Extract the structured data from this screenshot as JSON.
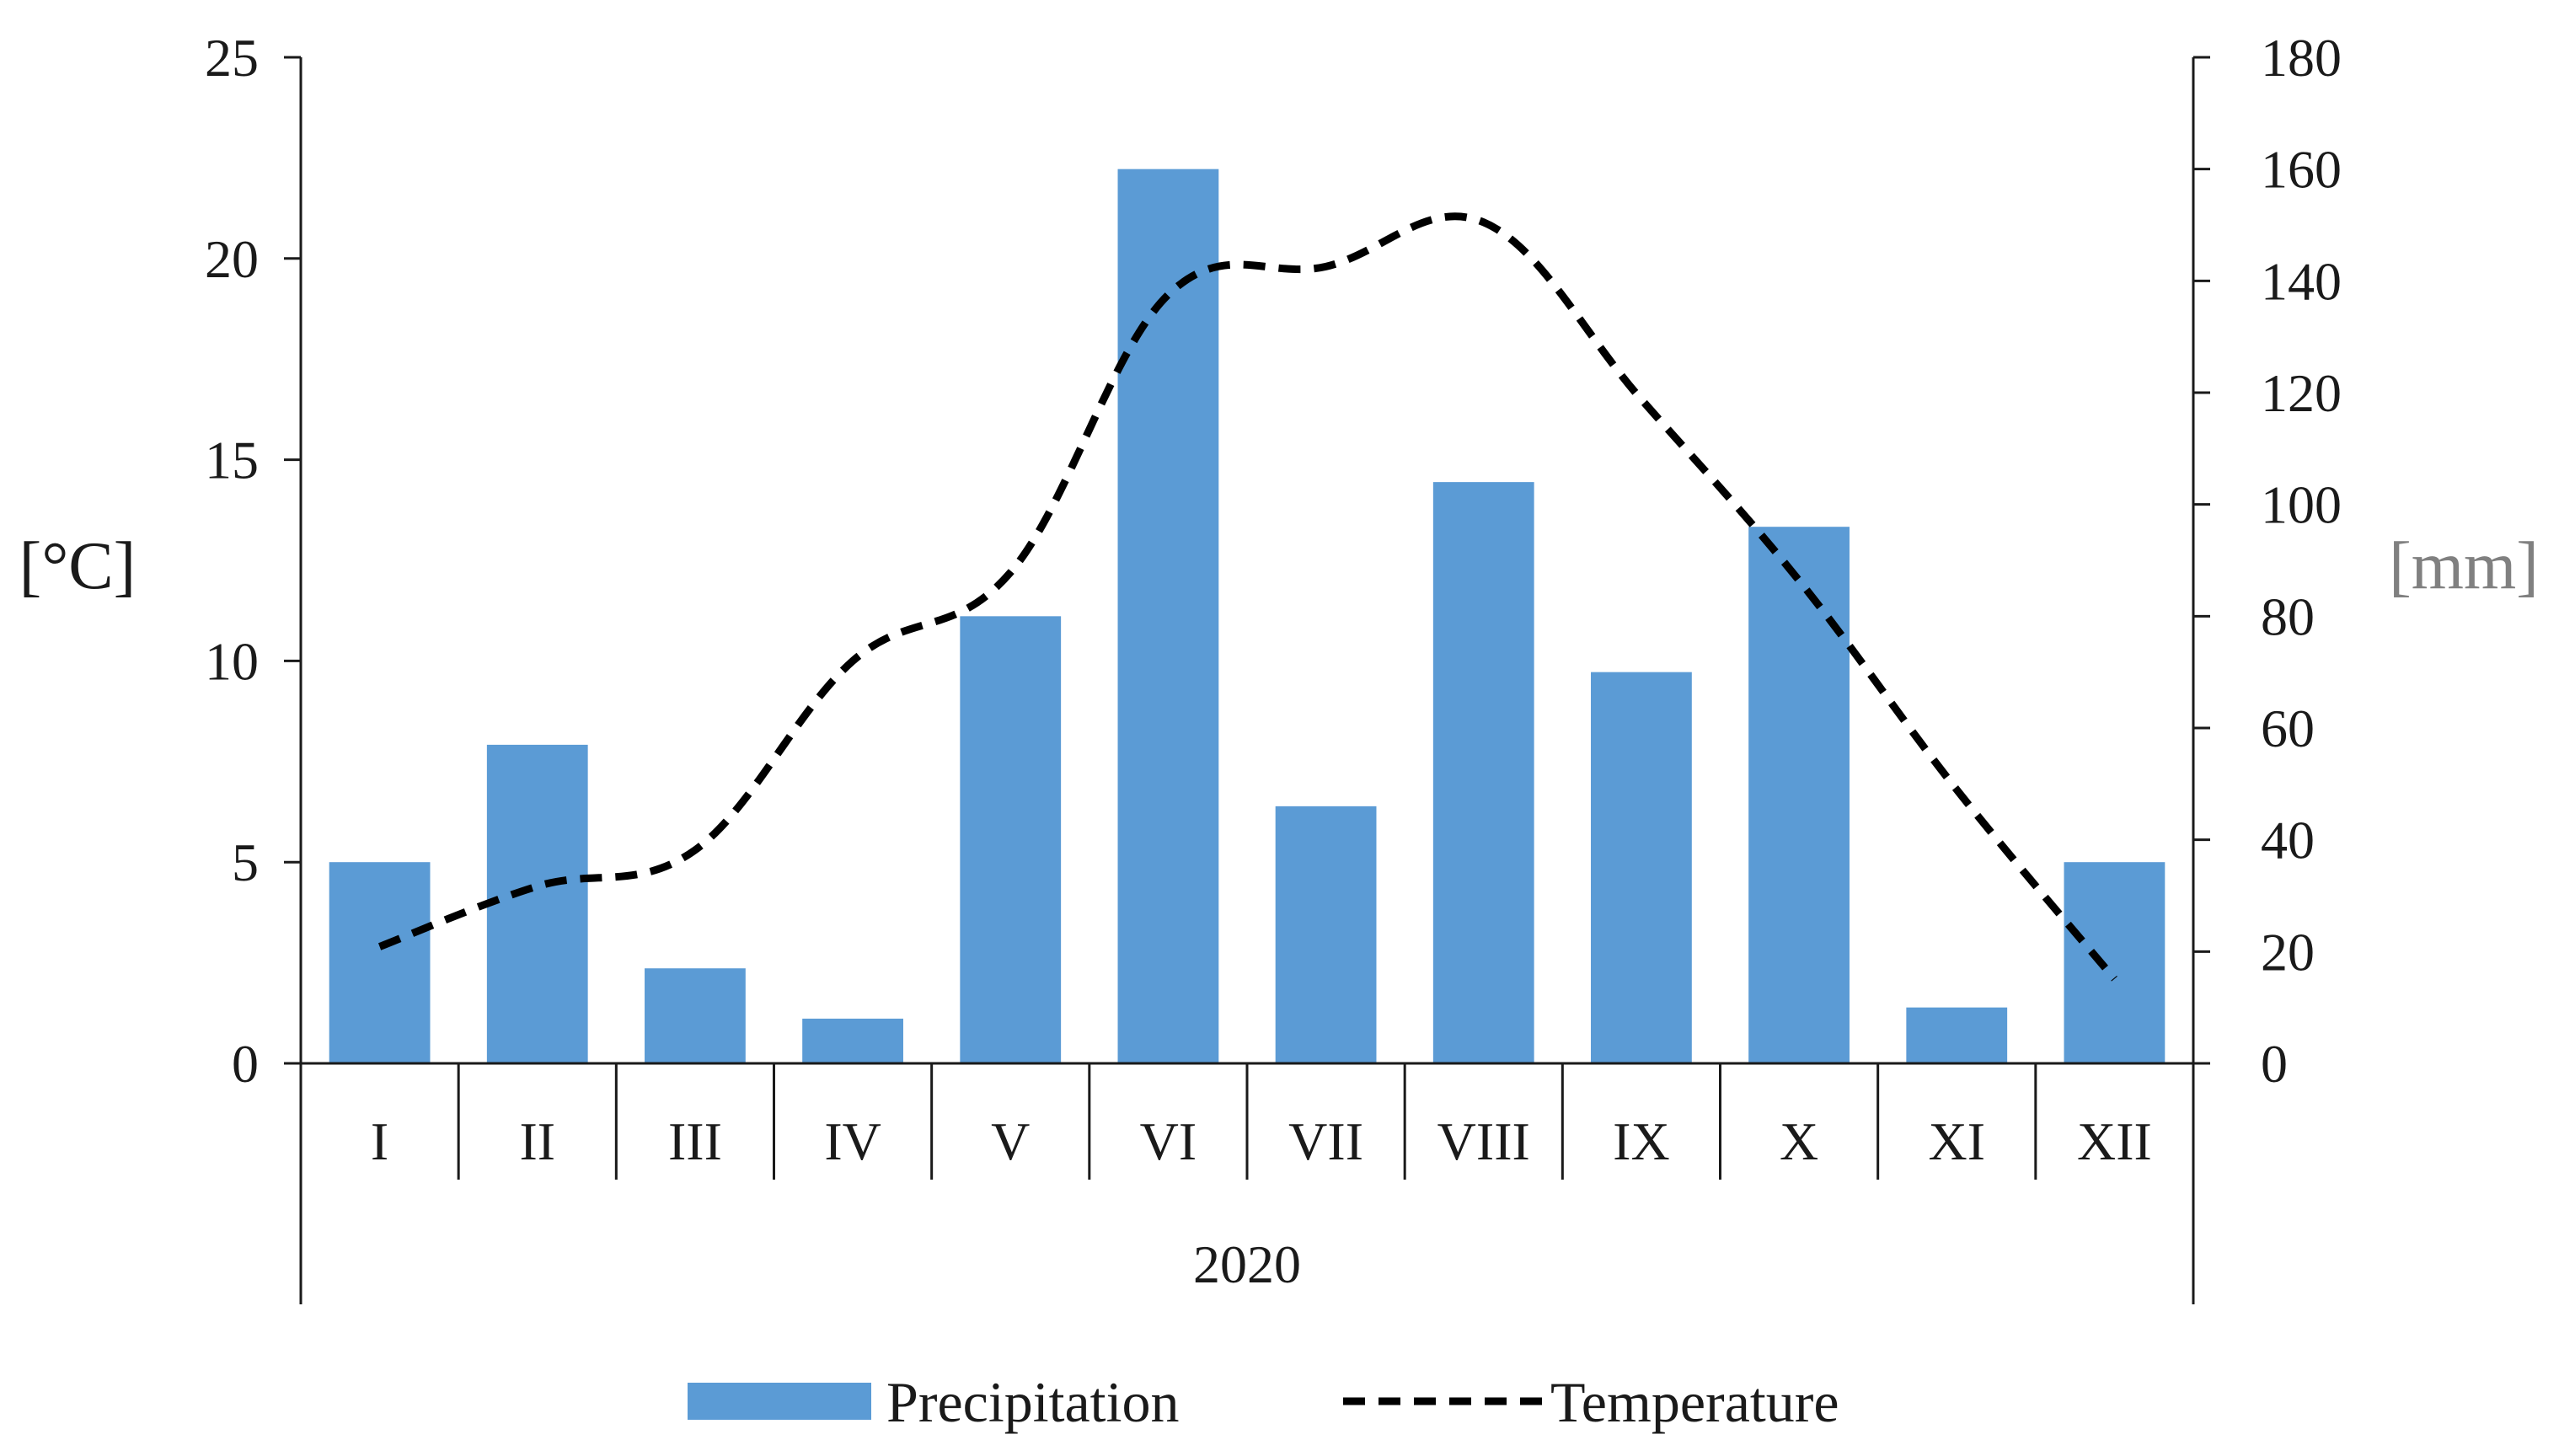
{
  "chart_data": {
    "type": "bar",
    "categories": [
      "I",
      "II",
      "III",
      "IV",
      "V",
      "VI",
      "VII",
      "VIII",
      "IX",
      "X",
      "XI",
      "XII"
    ],
    "group_label": "2020",
    "series": [
      {
        "name": "Precipitation",
        "type": "bar",
        "axis": "right",
        "color": "#5b9bd5",
        "values": [
          36,
          57,
          17,
          8,
          80,
          160,
          46,
          104,
          70,
          96,
          10,
          36
        ]
      },
      {
        "name": "Temperature",
        "type": "line",
        "axis": "left",
        "color": "#000000",
        "line_style": "dashed",
        "values": [
          2.9,
          4.4,
          5.3,
          10.0,
          12.2,
          19.1,
          19.8,
          20.9,
          16.5,
          12.0,
          6.8,
          2.1
        ]
      }
    ],
    "y_left": {
      "label": "[°C]",
      "ylim": [
        0,
        25
      ],
      "ticks": [
        0,
        5,
        10,
        15,
        20,
        25
      ]
    },
    "y_right": {
      "label": "[mm]",
      "ylim": [
        0,
        180
      ],
      "ticks": [
        0,
        20,
        40,
        60,
        80,
        100,
        120,
        140,
        160,
        180
      ],
      "label_color": "#808080"
    },
    "grid": false,
    "legend": {
      "position": "bottom",
      "entries": [
        "Precipitation",
        "Temperature"
      ]
    }
  }
}
